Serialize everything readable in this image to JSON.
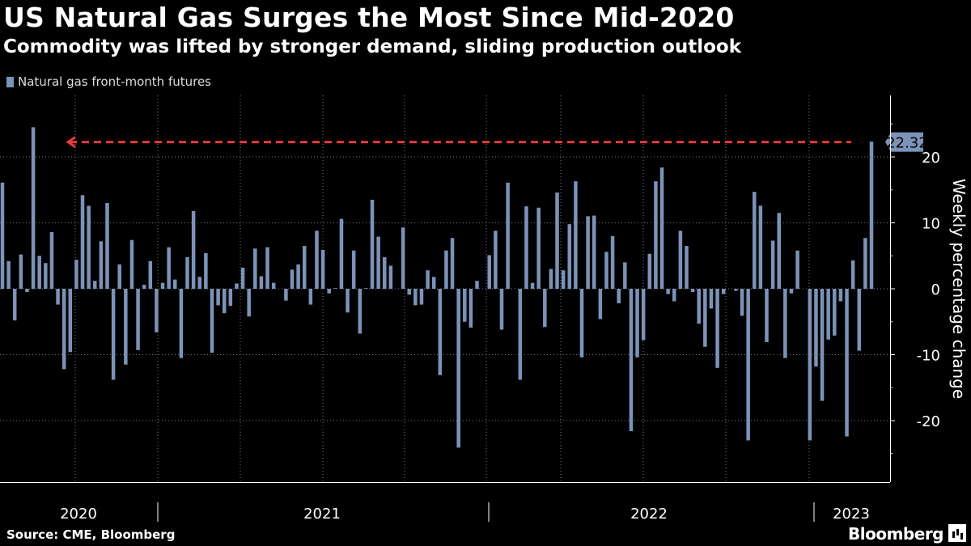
{
  "chart_data": {
    "type": "bar",
    "title": "US Natural Gas Surges the Most Since Mid-2020",
    "subtitle": "Commodity was lifted by stronger demand, sliding production outlook",
    "legend": [
      "Natural gas front-month futures"
    ],
    "ylabel": "Weekly percentage change",
    "ylim": [
      -28,
      29
    ],
    "yticks": [
      20,
      10,
      0,
      -10,
      -20
    ],
    "ytick_labels": [
      "20",
      "10",
      "0",
      "-10",
      "-20"
    ],
    "x_year_labels": [
      "2020",
      "2021",
      "2022",
      "2023"
    ],
    "annotation": {
      "value": 22.32,
      "label": "22.32"
    },
    "values": [
      16.1,
      4.2,
      -4.8,
      5.2,
      -0.5,
      24.5,
      5.0,
      3.9,
      8.6,
      -2.4,
      -12.2,
      -9.6,
      4.4,
      14.2,
      12.6,
      1.2,
      7.2,
      13.0,
      -13.8,
      3.7,
      -11.5,
      7.4,
      -9.3,
      0.6,
      4.2,
      -6.6,
      0.9,
      6.3,
      1.4,
      -10.5,
      4.8,
      11.8,
      1.8,
      5.4,
      -9.7,
      -2.5,
      -3.7,
      -2.6,
      0.8,
      3.2,
      -4.2,
      6.1,
      1.9,
      6.3,
      0.9,
      0.0,
      -1.8,
      2.9,
      3.7,
      6.5,
      -2.4,
      8.8,
      5.9,
      -0.7,
      0.1,
      10.6,
      -3.6,
      5.8,
      -6.8,
      0.1,
      13.5,
      7.9,
      4.8,
      3.5,
      0.0,
      9.3,
      -0.9,
      -2.5,
      -2.4,
      2.8,
      1.8,
      -13.1,
      5.8,
      7.7,
      -24.1,
      -5.0,
      -5.9,
      1.2,
      0.0,
      5.1,
      8.8,
      -6.2,
      16.1,
      0.0,
      -13.8,
      12.5,
      0.9,
      12.3,
      -5.8,
      3.0,
      14.6,
      2.8,
      9.8,
      16.3,
      -10.4,
      11.0,
      11.1,
      -4.6,
      5.6,
      8.0,
      -2.2,
      4.0,
      -21.6,
      -10.4,
      -7.8,
      5.3,
      16.3,
      18.4,
      -0.8,
      -1.9,
      8.8,
      6.5,
      -0.5,
      -5.3,
      -8.8,
      -3.0,
      -12.0,
      -0.8,
      0.0,
      -0.3,
      -4.1,
      -23.0,
      14.7,
      12.6,
      -8.1,
      7.3,
      11.5,
      -10.5,
      -0.7,
      5.8,
      0.0,
      -23.0,
      -11.8,
      -17.0,
      -7.7,
      -7.1,
      -1.9,
      -22.4,
      4.3,
      -9.4,
      7.7,
      22.32
    ]
  },
  "footer": {
    "source": "Source: CME, Bloomberg",
    "brand": "Bloomberg"
  },
  "colors": {
    "bar": "#7c93b8",
    "arrow": "#e8383b",
    "grid": "#7a7a7a",
    "label_box": "#7c93b8"
  }
}
